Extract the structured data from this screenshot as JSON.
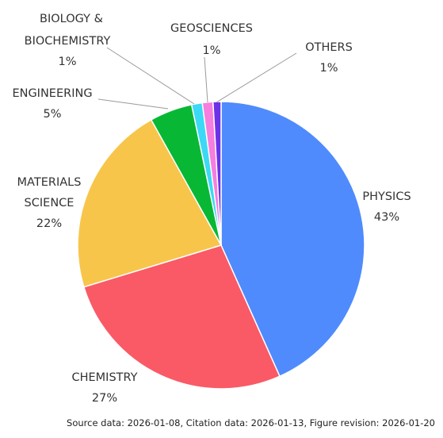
{
  "chart_data": {
    "type": "pie",
    "title": "",
    "slices": [
      {
        "label": "PHYSICS",
        "pct_label": "43%",
        "value": 43.3,
        "color": "#4f8bfc"
      },
      {
        "label": "CHEMISTRY",
        "pct_label": "27%",
        "value": 27.0,
        "color": "#f95a66"
      },
      {
        "label": "MATERIALS SCIENCE",
        "pct_label": "22%",
        "value": 21.6,
        "color": "#f8c54b"
      },
      {
        "label": "ENGINEERING",
        "pct_label": "5%",
        "value": 4.8,
        "color": "#08b834"
      },
      {
        "label": "BIOLOGY & BIOCHEMISTRY",
        "pct_label": "1%",
        "value": 1.2,
        "color": "#3bd9f5"
      },
      {
        "label": "GEOSCIENCES",
        "pct_label": "1%",
        "value": 1.2,
        "color": "#f57ede"
      },
      {
        "label": "OTHERS",
        "pct_label": "1%",
        "value": 0.9,
        "color": "#6b32e8"
      }
    ]
  },
  "footer": {
    "text": "Source data: 2026-01-08, Citation data: 2026-01-13, Figure revision: 2026-01-20"
  }
}
